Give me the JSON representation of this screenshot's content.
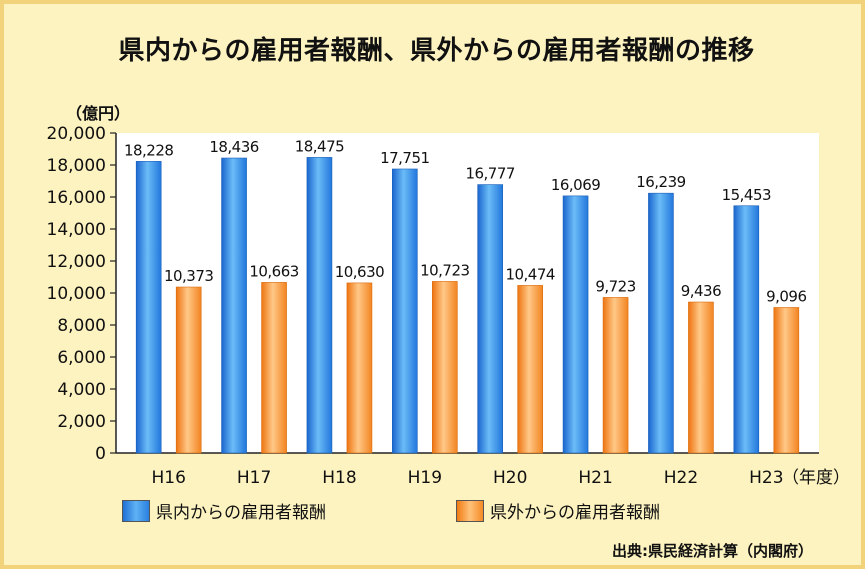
{
  "title": "県内からの雇用者報酬、県外からの雇用者報酬の推移",
  "unit_label": "（億円）",
  "source": "出典:県民経済計算（内閣府）",
  "colors": {
    "background": "#fdf3c0",
    "plot_bg": "#ffffff",
    "series_blue": "#2f86e6",
    "series_orange": "#f58a25"
  },
  "chart_data": {
    "type": "bar",
    "categories": [
      "H16",
      "H17",
      "H18",
      "H19",
      "H20",
      "H21",
      "H22",
      "H23"
    ],
    "x_unit_label": "（年度）",
    "ylim": [
      0,
      20000
    ],
    "yticks": [
      0,
      2000,
      4000,
      6000,
      8000,
      10000,
      12000,
      14000,
      16000,
      18000,
      20000
    ],
    "ytick_labels": [
      "0",
      "2,000",
      "4,000",
      "6,000",
      "8,000",
      "10,000",
      "12,000",
      "14,000",
      "16,000",
      "18,000",
      "20,000"
    ],
    "grid": false,
    "legend_position": "bottom",
    "series": [
      {
        "name": "県内からの雇用者報酬",
        "values": [
          18228,
          18436,
          18475,
          17751,
          16777,
          16069,
          16239,
          15453
        ],
        "labels": [
          "18,228",
          "18,436",
          "18,475",
          "17,751",
          "16,777",
          "16,069",
          "16,239",
          "15,453"
        ]
      },
      {
        "name": "県外からの雇用者報酬",
        "values": [
          10373,
          10663,
          10630,
          10723,
          10474,
          9723,
          9436,
          9096
        ],
        "labels": [
          "10,373",
          "10,663",
          "10,630",
          "10,723",
          "10,474",
          "9,723",
          "9,436",
          "9,096"
        ]
      }
    ]
  }
}
